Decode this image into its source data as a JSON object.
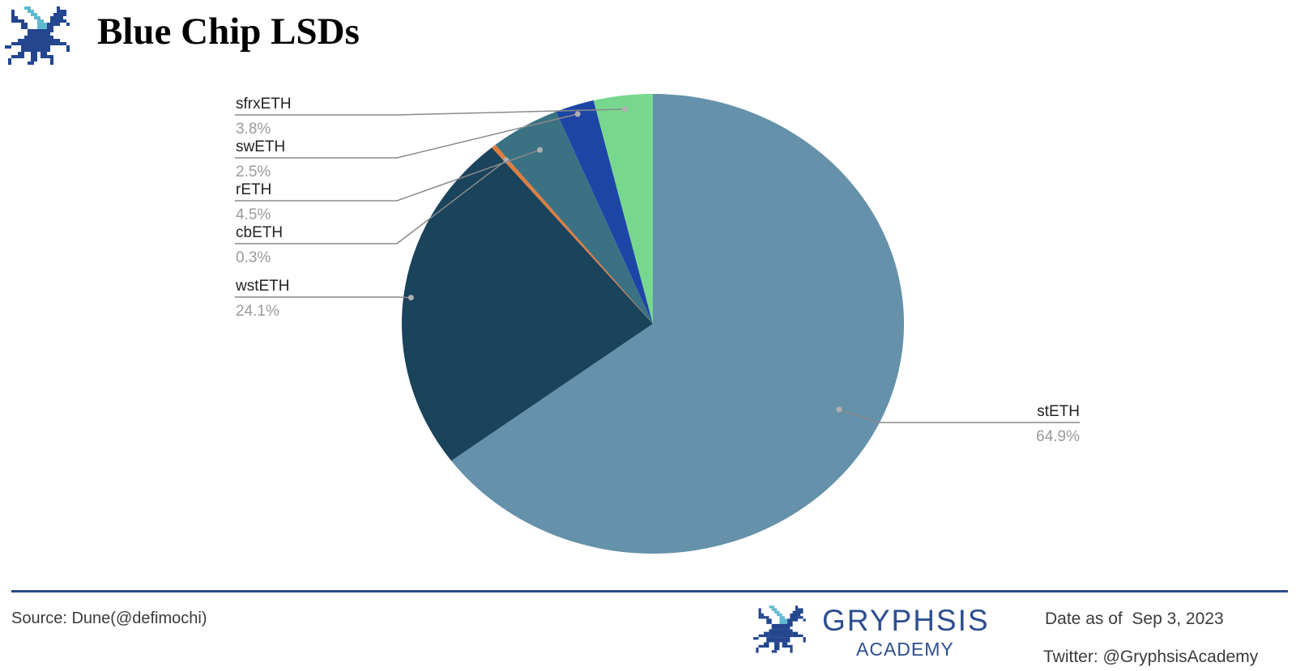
{
  "header": {
    "title": "Blue Chip LSDs"
  },
  "chart_data": {
    "type": "pie",
    "title": "Blue Chip LSDs",
    "slices": [
      {
        "label": "stETH",
        "value": 64.9,
        "pct_label": "64.9%",
        "color": "#6591aa"
      },
      {
        "label": "wstETH",
        "value": 24.1,
        "pct_label": "24.1%",
        "color": "#1a435c"
      },
      {
        "label": "cbETH",
        "value": 0.3,
        "pct_label": "0.3%",
        "color": "#e07c3e"
      },
      {
        "label": "rETH",
        "value": 4.5,
        "pct_label": "4.5%",
        "color": "#3a7283"
      },
      {
        "label": "swETH",
        "value": 2.5,
        "pct_label": "2.5%",
        "color": "#1d45a6"
      },
      {
        "label": "sfrxETH",
        "value": 3.8,
        "pct_label": "3.8%",
        "color": "#77d78e"
      }
    ],
    "start_angle": "12 o'clock",
    "direction": "clockwise",
    "legend": "none"
  },
  "footer": {
    "source": "Source: Dune(@defimochi)",
    "brand_name": "GRYPHSIS",
    "brand_sub": "ACADEMY",
    "date": "Date as of  Sep 3, 2023",
    "twitter": "Twitter: @GryphsisAcademy"
  },
  "colors": {
    "rule": "#2b4c8a",
    "brand": "#2d4e8f",
    "logo_dark": "#23468f",
    "logo_light": "#5fb9d1"
  },
  "icons": {
    "logo": "gryphon-pixel-icon"
  }
}
